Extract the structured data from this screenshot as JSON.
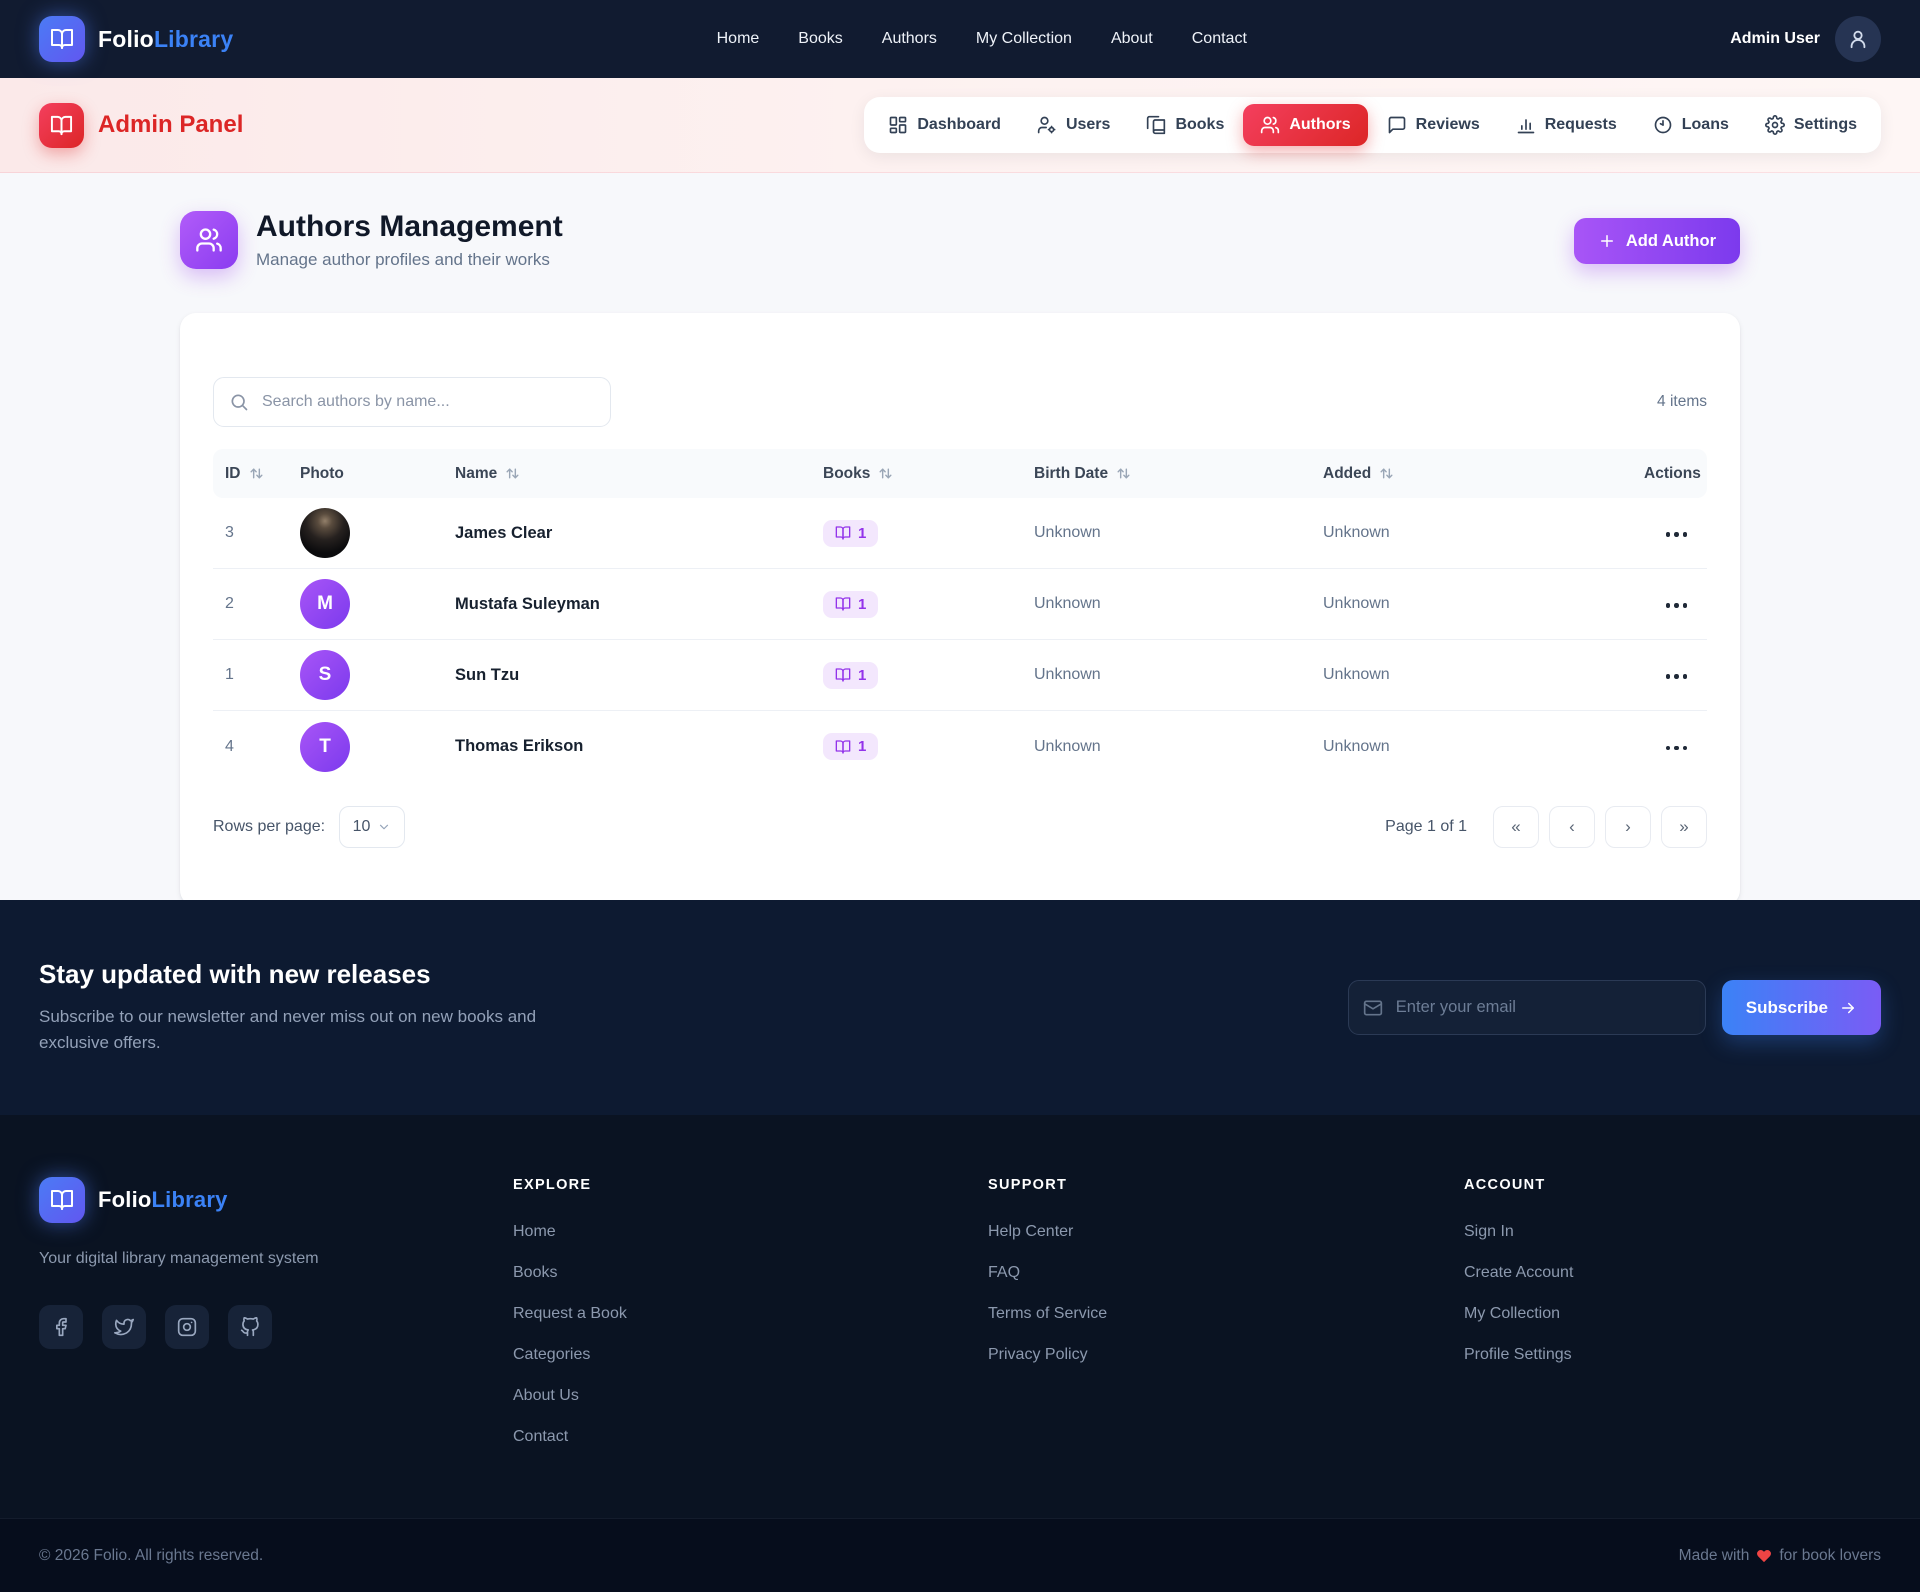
{
  "navbar": {
    "brand": {
      "primary": "Folio",
      "secondary": "Library"
    },
    "links": [
      "Home",
      "Books",
      "Authors",
      "My Collection",
      "About",
      "Contact"
    ],
    "user_name": "Admin User"
  },
  "admin_bar": {
    "title": "Admin Panel",
    "tabs": [
      {
        "label": "Dashboard",
        "icon": "dashboard",
        "active": false
      },
      {
        "label": "Users",
        "icon": "user-cog",
        "active": false
      },
      {
        "label": "Books",
        "icon": "book-copy",
        "active": false
      },
      {
        "label": "Authors",
        "icon": "users",
        "active": true
      },
      {
        "label": "Reviews",
        "icon": "message",
        "active": false
      },
      {
        "label": "Requests",
        "icon": "chart",
        "active": false
      },
      {
        "label": "Loans",
        "icon": "clock",
        "active": false
      },
      {
        "label": "Settings",
        "icon": "settings",
        "active": false
      }
    ]
  },
  "page_header": {
    "title": "Authors Management",
    "subtitle": "Manage author profiles and their works",
    "add_button_label": "Add Author"
  },
  "toolbar": {
    "search_placeholder": "Search authors by name...",
    "items_count": "4 items"
  },
  "table": {
    "columns": [
      {
        "label": "ID",
        "sortable": true
      },
      {
        "label": "Photo",
        "sortable": false
      },
      {
        "label": "Name",
        "sortable": true
      },
      {
        "label": "Books",
        "sortable": true
      },
      {
        "label": "Birth Date",
        "sortable": true
      },
      {
        "label": "Added",
        "sortable": true
      },
      {
        "label": "Actions",
        "sortable": false
      }
    ],
    "rows": [
      {
        "id": "3",
        "name": "James Clear",
        "avatar_type": "photo",
        "avatar_letter": "",
        "books_count": "1",
        "birth_date": "Unknown",
        "added": "Unknown"
      },
      {
        "id": "2",
        "name": "Mustafa Suleyman",
        "avatar_type": "letter",
        "avatar_letter": "M",
        "books_count": "1",
        "birth_date": "Unknown",
        "added": "Unknown"
      },
      {
        "id": "1",
        "name": "Sun Tzu",
        "avatar_type": "letter",
        "avatar_letter": "S",
        "books_count": "1",
        "birth_date": "Unknown",
        "added": "Unknown"
      },
      {
        "id": "4",
        "name": "Thomas Erikson",
        "avatar_type": "letter",
        "avatar_letter": "T",
        "books_count": "1",
        "birth_date": "Unknown",
        "added": "Unknown"
      }
    ]
  },
  "pagination": {
    "rows_per_page_label": "Rows per page:",
    "rows_per_page_value": "10",
    "page_info": "Page 1 of 1"
  },
  "newsletter": {
    "title": "Stay updated with new releases",
    "subtitle": "Subscribe to our newsletter and never miss out on new books and exclusive offers.",
    "email_placeholder": "Enter your email",
    "subscribe_label": "Subscribe"
  },
  "footer": {
    "tagline": "Your digital library management system",
    "columns": [
      {
        "heading": "EXPLORE",
        "links": [
          "Home",
          "Books",
          "Request a Book",
          "Categories",
          "About Us",
          "Contact"
        ]
      },
      {
        "heading": "SUPPORT",
        "links": [
          "Help Center",
          "FAQ",
          "Terms of Service",
          "Privacy Policy"
        ]
      },
      {
        "heading": "ACCOUNT",
        "links": [
          "Sign In",
          "Create Account",
          "My Collection",
          "Profile Settings"
        ]
      }
    ],
    "social": [
      "facebook",
      "twitter",
      "instagram",
      "github"
    ],
    "copyright": "© 2026 Folio. All rights reserved.",
    "made_with_prefix": "Made with",
    "made_with_suffix": "for book lovers"
  },
  "colors": {
    "brand_blue": "#3b82f6",
    "admin_red": "#dc2626",
    "accent_purple": "#9333ea",
    "navy_dark": "#0d1a31",
    "footer_dark": "#0a1322"
  }
}
